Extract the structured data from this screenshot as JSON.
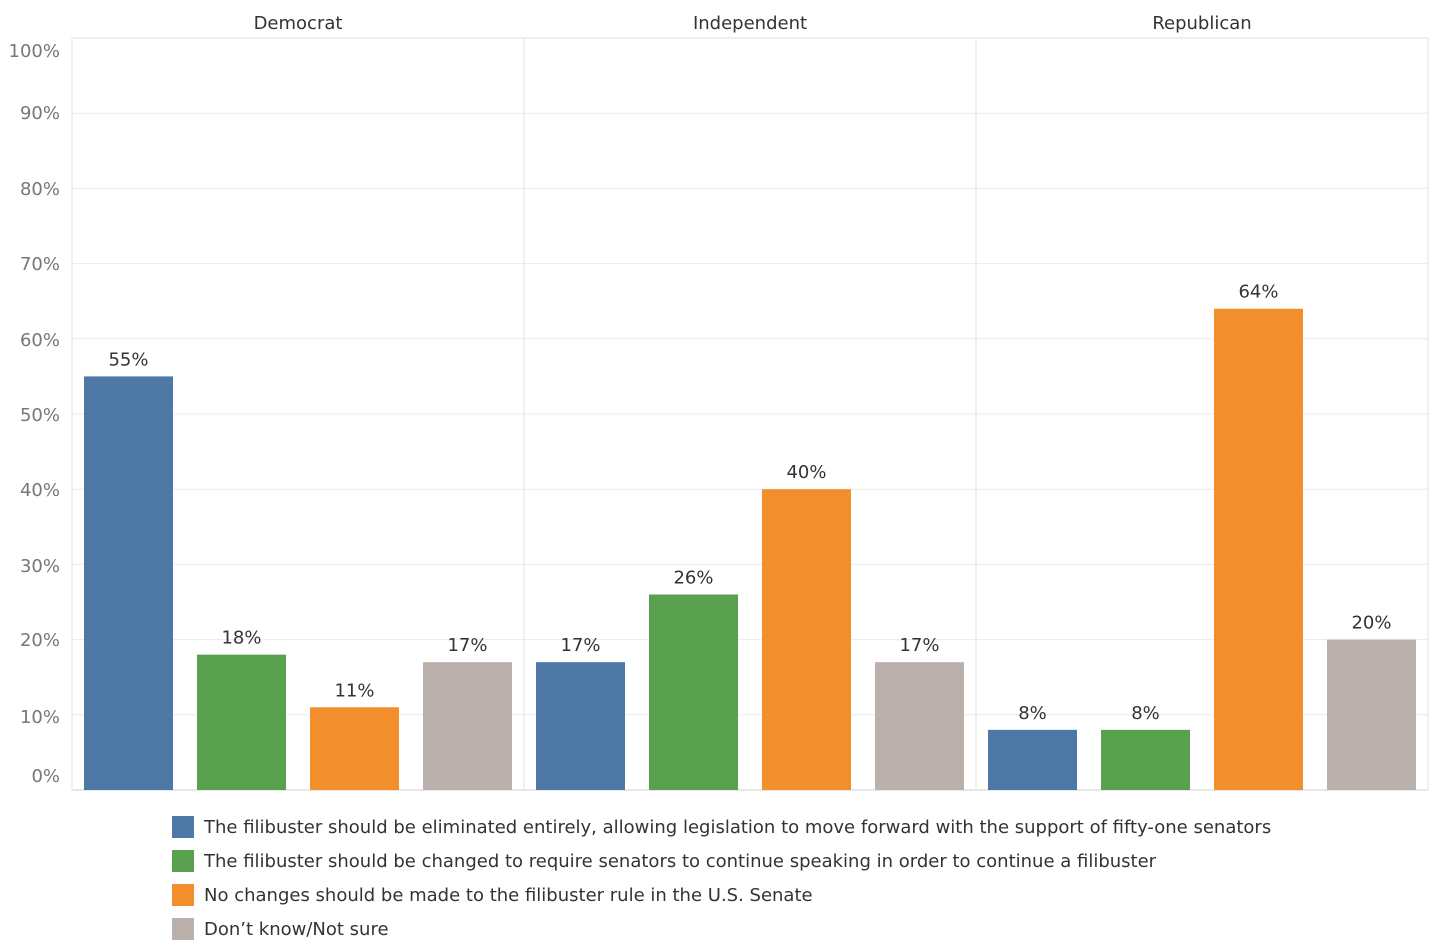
{
  "chart_data": {
    "type": "bar",
    "panels": [
      "Democrat",
      "Independent",
      "Republican"
    ],
    "y_ticks": [
      "0%",
      "10%",
      "20%",
      "30%",
      "40%",
      "50%",
      "60%",
      "70%",
      "80%",
      "90%",
      "100%"
    ],
    "ylim": [
      0,
      100
    ],
    "grid": true,
    "legend_position": "bottom",
    "series": [
      {
        "name": "The filibuster should be eliminated entirely, allowing legislation to move forward with the support of fifty-one senators",
        "color": "#4e79a7",
        "values": [
          55,
          17,
          8
        ],
        "labels": [
          "55%",
          "17%",
          "8%"
        ]
      },
      {
        "name": "The filibuster should be changed to require senators to continue speaking in order to continue a filibuster",
        "color": "#59a14f",
        "values": [
          18,
          26,
          8
        ],
        "labels": [
          "18%",
          "26%",
          "8%"
        ]
      },
      {
        "name": "No changes should be made to the filibuster rule in the U.S. Senate",
        "color": "#f28e2b",
        "values": [
          11,
          40,
          64
        ],
        "labels": [
          "11%",
          "40%",
          "64%"
        ]
      },
      {
        "name": "Don’t know/Not sure",
        "color": "#bab0ac",
        "values": [
          17,
          17,
          20
        ],
        "labels": [
          "17%",
          "17%",
          "20%"
        ]
      }
    ]
  }
}
